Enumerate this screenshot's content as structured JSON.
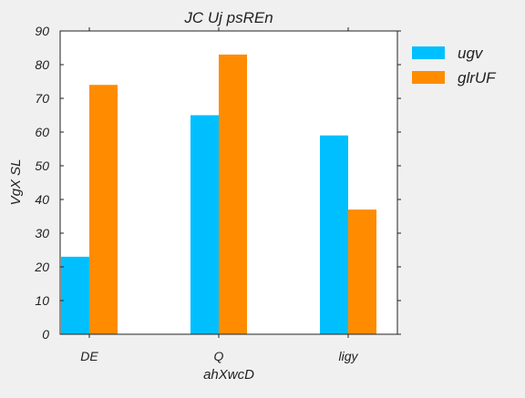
{
  "chart_data": {
    "type": "bar",
    "title": "JC  Uj psREn",
    "xlabel": "ahXwcD",
    "ylabel": "VgX  SL",
    "categories": [
      "DE",
      "Q",
      "ligy"
    ],
    "series": [
      {
        "name": "ugv",
        "values": [
          23,
          65,
          59
        ],
        "color": "#00bfff"
      },
      {
        "name": "glrUF",
        "values": [
          74,
          83,
          37
        ],
        "color": "#ff8c00"
      }
    ],
    "ylim": [
      0,
      90
    ],
    "yticks": [
      0,
      10,
      20,
      30,
      40,
      50,
      60,
      70,
      80,
      90
    ],
    "grid": false,
    "legend": "outside-right",
    "plot_background": "#ffffff",
    "figure_background": "#f0f0f0"
  }
}
